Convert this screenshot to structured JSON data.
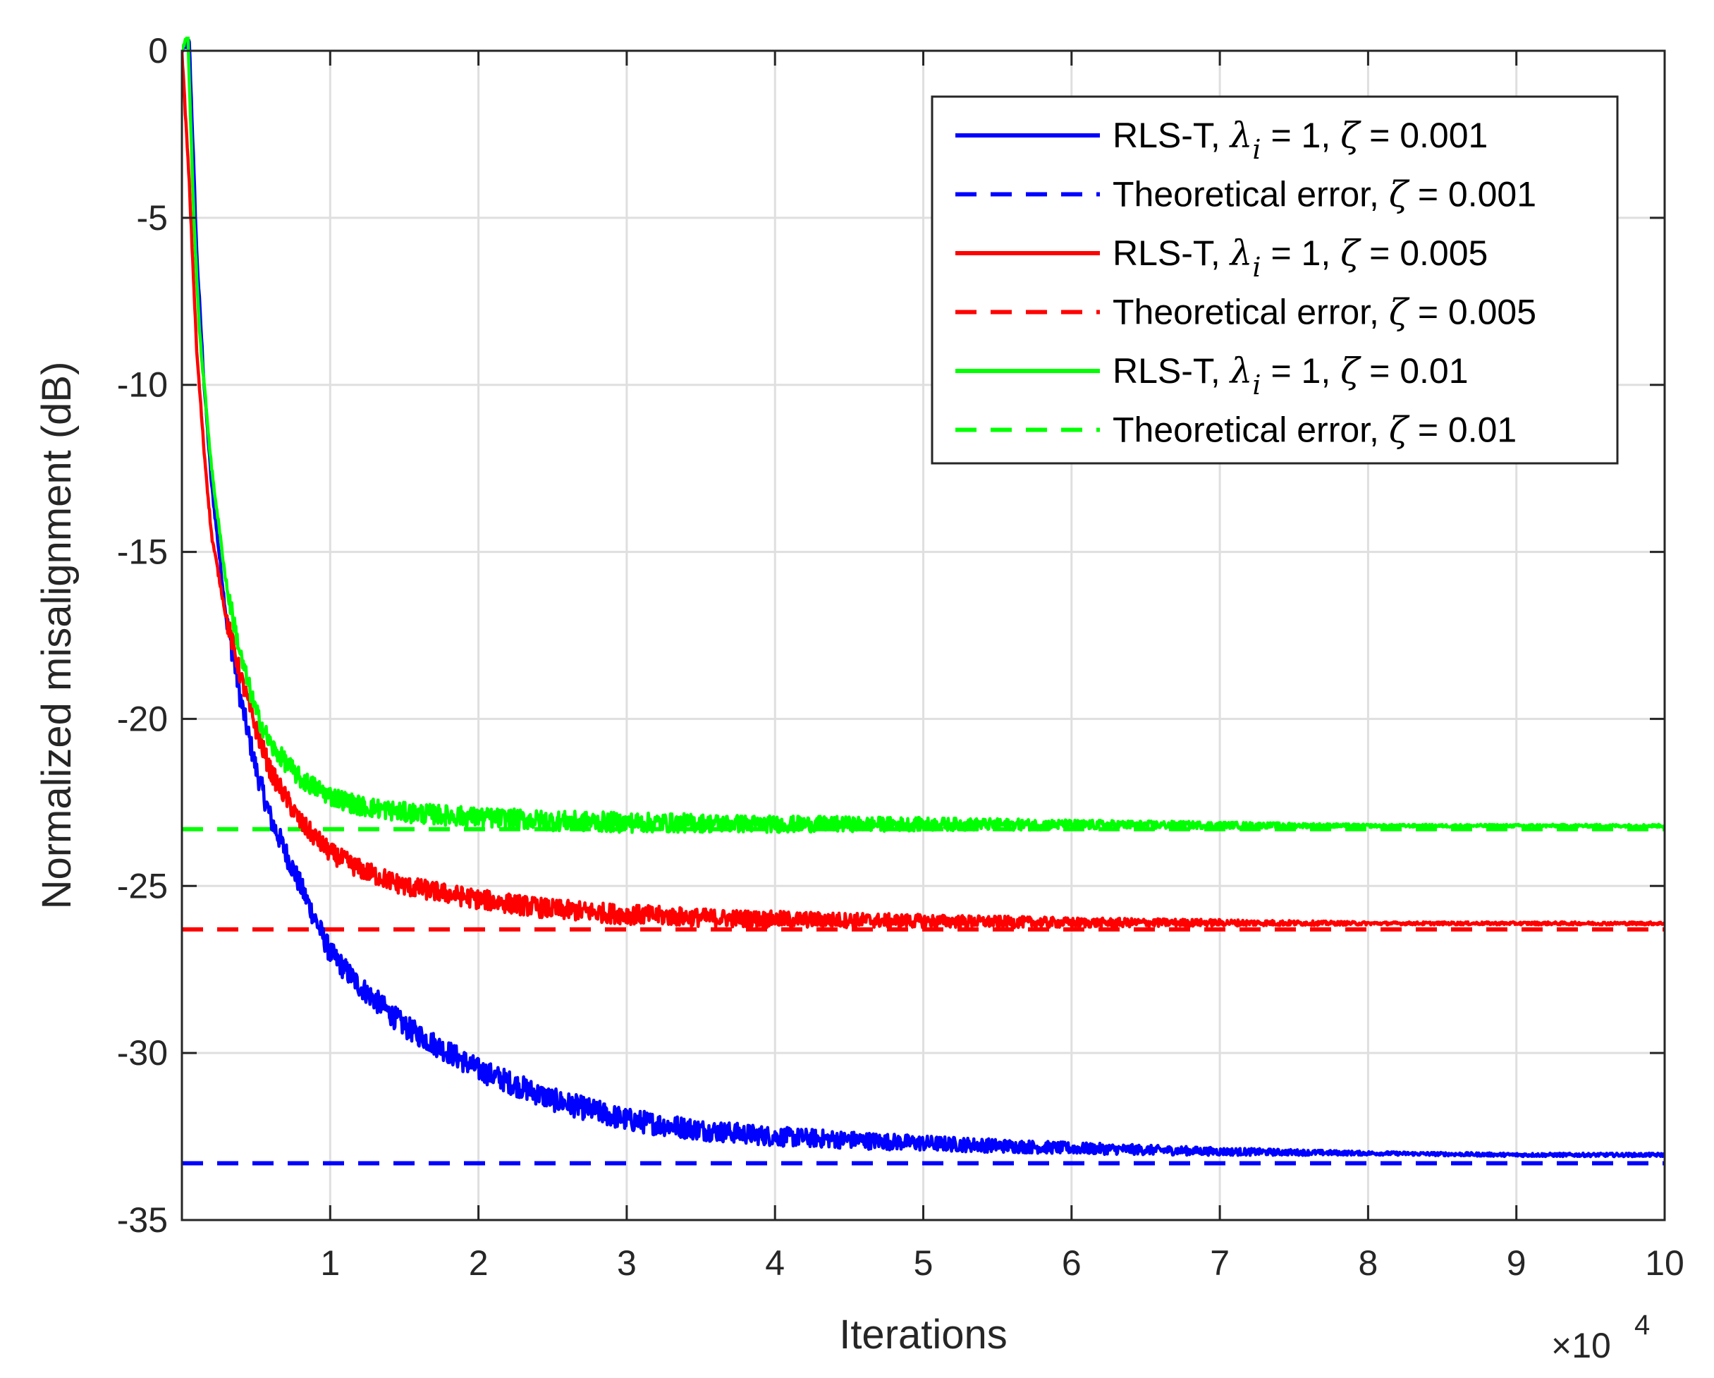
{
  "chart_data": {
    "type": "line",
    "title": "",
    "xlabel": "Iterations",
    "ylabel": "Normalized misalignment (dB)",
    "x_multiplier_label": {
      "base": "×10",
      "exponent": "4"
    },
    "xlim": [
      0,
      10
    ],
    "ylim": [
      -35,
      0
    ],
    "xticks": [
      1,
      2,
      3,
      4,
      5,
      6,
      7,
      8,
      9,
      10
    ],
    "xtick_labels": [
      "1",
      "2",
      "3",
      "4",
      "5",
      "6",
      "7",
      "8",
      "9",
      "10"
    ],
    "yticks": [
      0,
      -5,
      -10,
      -15,
      -20,
      -25,
      -30,
      -35
    ],
    "ytick_labels": [
      "0",
      "-5",
      "-10",
      "-15",
      "-20",
      "-25",
      "-30",
      "-35"
    ],
    "grid": true,
    "legend_position": "top-right",
    "series": [
      {
        "name": "RLS-T, λi = 1, ζ = 0.001",
        "legend": {
          "prefix": "RLS-T, ",
          "lambda": "λ",
          "sub": "i",
          "mid": " = 1, ",
          "zeta": "ζ",
          "suffix": " = 0.001"
        },
        "color": "#0000ff",
        "dash": "solid",
        "noise": 0.35,
        "x": [
          0,
          0.05,
          0.1,
          0.15,
          0.2,
          0.3,
          0.4,
          0.5,
          0.6,
          0.8,
          1.0,
          1.2,
          1.5,
          2.0,
          2.5,
          3.0,
          3.5,
          4.0,
          5.0,
          6.0,
          7.0,
          8.0,
          9.0,
          10.0
        ],
        "y": [
          0,
          0.3,
          -6,
          -10,
          -13,
          -17,
          -19.5,
          -21.5,
          -23,
          -25,
          -27,
          -28,
          -29.2,
          -30.5,
          -31.4,
          -32,
          -32.3,
          -32.5,
          -32.7,
          -32.85,
          -32.95,
          -33,
          -33.05,
          -33.05
        ]
      },
      {
        "name": "Theoretical error, ζ = 0.001",
        "legend": {
          "prefix": "Theoretical error, ",
          "zeta": "ζ",
          "suffix": " = 0.001"
        },
        "color": "#0000ff",
        "dash": "dashed",
        "noise": 0,
        "x": [
          0,
          10
        ],
        "y": [
          -33.3,
          -33.3
        ]
      },
      {
        "name": "RLS-T, λi = 1, ζ = 0.005",
        "legend": {
          "prefix": "RLS-T, ",
          "lambda": "λ",
          "sub": "i",
          "mid": " = 1, ",
          "zeta": "ζ",
          "suffix": " = 0.005"
        },
        "color": "#ff0000",
        "dash": "solid",
        "noise": 0.3,
        "x": [
          0,
          0.05,
          0.1,
          0.15,
          0.2,
          0.3,
          0.4,
          0.5,
          0.6,
          0.8,
          1.0,
          1.2,
          1.5,
          2.0,
          2.5,
          3.0,
          3.5,
          4.0,
          5.0,
          6.0,
          7.0,
          8.0,
          9.0,
          10.0
        ],
        "y": [
          0,
          -4,
          -9,
          -12,
          -14.5,
          -17,
          -18.8,
          -20.3,
          -21.6,
          -23.1,
          -24,
          -24.5,
          -25,
          -25.4,
          -25.7,
          -25.85,
          -25.95,
          -26,
          -26.05,
          -26.1,
          -26.1,
          -26.12,
          -26.12,
          -26.12
        ]
      },
      {
        "name": "Theoretical error, ζ = 0.005",
        "legend": {
          "prefix": "Theoretical error, ",
          "zeta": "ζ",
          "suffix": " = 0.005"
        },
        "color": "#ff0000",
        "dash": "dashed",
        "noise": 0,
        "x": [
          0,
          10
        ],
        "y": [
          -26.3,
          -26.3
        ]
      },
      {
        "name": "RLS-T, λi = 1, ζ = 0.01",
        "legend": {
          "prefix": "RLS-T, ",
          "lambda": "λ",
          "sub": "i",
          "mid": " = 1, ",
          "zeta": "ζ",
          "suffix": " = 0.01"
        },
        "color": "#00ff00",
        "dash": "solid",
        "noise": 0.3,
        "x": [
          0,
          0.04,
          0.08,
          0.12,
          0.2,
          0.3,
          0.4,
          0.5,
          0.6,
          0.8,
          1.0,
          1.2,
          1.5,
          2.0,
          2.5,
          3.0,
          3.5,
          4.0,
          5.0,
          6.0,
          7.0,
          8.0,
          9.0,
          10.0
        ],
        "y": [
          0,
          0.5,
          -5,
          -8.5,
          -12.5,
          -16,
          -18.2,
          -19.8,
          -20.8,
          -21.8,
          -22.3,
          -22.6,
          -22.8,
          -22.95,
          -23.05,
          -23.1,
          -23.12,
          -23.15,
          -23.15,
          -23.17,
          -23.18,
          -23.2,
          -23.2,
          -23.2
        ]
      },
      {
        "name": "Theoretical error, ζ = 0.01",
        "legend": {
          "prefix": "Theoretical error, ",
          "zeta": "ζ",
          "suffix": " = 0.01"
        },
        "color": "#00ff00",
        "dash": "dashed",
        "noise": 0,
        "x": [
          0,
          10
        ],
        "y": [
          -23.3,
          -23.3
        ]
      }
    ]
  }
}
